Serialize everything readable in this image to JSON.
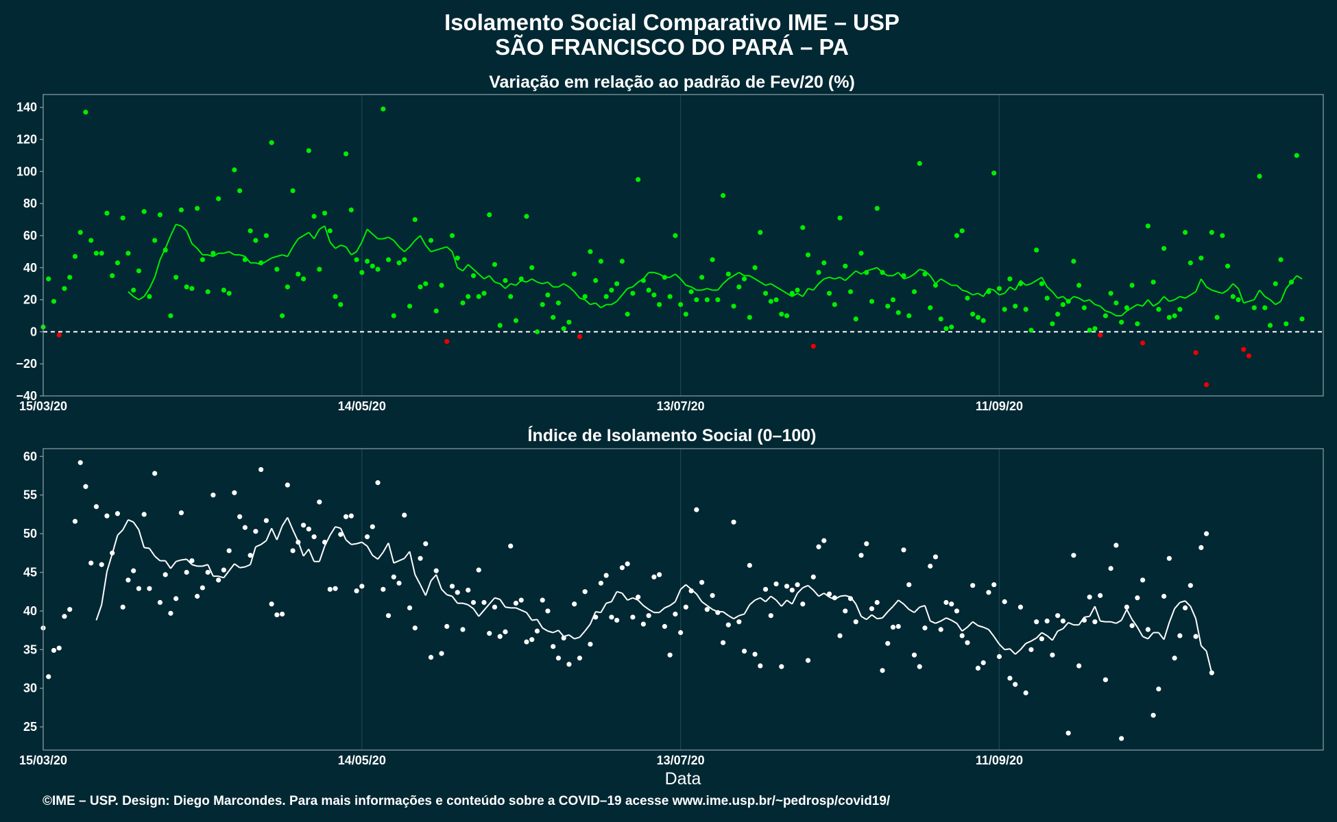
{
  "chart_data": {
    "title": "Isolamento Social Comparativo IME – USP",
    "subtitle": "SÃO FRANCISCO DO PARÁ – PA",
    "xlabel": "Data",
    "footer": "©IME – USP. Design: Diego Marcondes. Para mais informações e conteúdo sobre a COVID–19 acesse www.ime.usp.br/~pedrosp/covid19/",
    "start_date": "2020-03-15",
    "end_date": "2020-11-11",
    "x_ticks": [
      {
        "label": "15/03/20",
        "day": 0
      },
      {
        "label": "14/05/20",
        "day": 60
      },
      {
        "label": "13/07/20",
        "day": 120
      },
      {
        "label": "11/09/20",
        "day": 180
      }
    ],
    "colors": {
      "background": "#022833",
      "positive": "#00ee00",
      "negative": "#ee0000",
      "index": "#ffffff",
      "grid": "#1e4652",
      "frame": "#8da2a8"
    },
    "panels": [
      {
        "type": "scatter",
        "title": "Variação em relação ao padrão de Fev/20 (%)",
        "ylim": [
          -40,
          148
        ],
        "y_ticks": [
          -40,
          -20,
          0,
          20,
          40,
          60,
          80,
          100,
          120,
          140
        ],
        "reference_line": 0,
        "points": [
          3,
          33,
          19,
          -2,
          27,
          34,
          47,
          62,
          137,
          57,
          49,
          49,
          74,
          35,
          43,
          71,
          49,
          26,
          38,
          75,
          22,
          57,
          73,
          51,
          10,
          34,
          76,
          28,
          27,
          77,
          45,
          25,
          49,
          83,
          26,
          24,
          101,
          88,
          45,
          63,
          57,
          43,
          60,
          118,
          39,
          10,
          28,
          88,
          36,
          33,
          113,
          72,
          39,
          74,
          63,
          22,
          17,
          111,
          76,
          45,
          37,
          44,
          41,
          39,
          139,
          45,
          10,
          43,
          45,
          16,
          70,
          28,
          30,
          57,
          13,
          29,
          -6,
          60,
          46,
          18,
          22,
          35,
          22,
          24,
          73,
          42,
          4,
          32,
          22,
          7,
          33,
          72,
          40,
          0,
          17,
          23,
          9,
          18,
          2,
          6,
          36,
          -3,
          22,
          50,
          32,
          44,
          22,
          26,
          30,
          44,
          11,
          24,
          95,
          32,
          26,
          23,
          17,
          34,
          22,
          60,
          17,
          11,
          25,
          20,
          34,
          20,
          45,
          20,
          85,
          36,
          16,
          28,
          33,
          9,
          40,
          62,
          24,
          19,
          20,
          11,
          10,
          24,
          26,
          65,
          48,
          -9,
          37,
          43,
          24,
          17,
          71,
          41,
          25,
          8,
          49,
          37,
          19,
          77,
          37,
          16,
          20,
          12,
          35,
          10,
          25,
          105,
          36,
          15,
          29,
          8,
          2,
          3,
          60,
          63,
          21,
          11,
          9,
          7,
          25,
          99,
          27,
          14,
          33,
          16,
          30,
          14,
          1,
          51,
          30,
          21,
          5,
          11,
          17,
          19,
          44,
          29,
          15,
          1,
          2,
          -2,
          10,
          24,
          18,
          6,
          15,
          29,
          5,
          -7,
          66,
          31,
          14,
          52,
          9,
          10,
          14,
          62,
          43,
          -13,
          46,
          -33,
          62,
          9,
          60,
          41,
          22,
          20,
          -11,
          -15,
          15,
          97,
          15,
          4,
          30,
          45,
          5,
          31,
          110,
          8
        ],
        "smooth": [
          25,
          22,
          20,
          22,
          27,
          34,
          45,
          52,
          60,
          67,
          66,
          63,
          55,
          52,
          48,
          48,
          47,
          49,
          49,
          50,
          48,
          48,
          47,
          43,
          43,
          42,
          44,
          46,
          47,
          48,
          47,
          53,
          58,
          60,
          62,
          58,
          64,
          66,
          56,
          52,
          54,
          53,
          48,
          50,
          56,
          64,
          61,
          58,
          58,
          59,
          57,
          53,
          50,
          53,
          57,
          60,
          54,
          50,
          51,
          52,
          53,
          50,
          40,
          38,
          42,
          39,
          36,
          33,
          35,
          31,
          30,
          27,
          30,
          29,
          32,
          31,
          33,
          31,
          30,
          31,
          28,
          28,
          30,
          28,
          25,
          21,
          20,
          17,
          18,
          15,
          17,
          17,
          19,
          23,
          27,
          28,
          31,
          33,
          37,
          37,
          36,
          34,
          34,
          36,
          33,
          29,
          28,
          26,
          26,
          27,
          26,
          26,
          30,
          33,
          35,
          37,
          35,
          35,
          33,
          31,
          29,
          30,
          28,
          26,
          24,
          22,
          24,
          22,
          27,
          26,
          30,
          33,
          34,
          33,
          34,
          32,
          35,
          38,
          36,
          38,
          39,
          40,
          37,
          35,
          35,
          37,
          33,
          34,
          36,
          39,
          38,
          35,
          30,
          33,
          31,
          29,
          29,
          26,
          25,
          23,
          24,
          22,
          27,
          26,
          23,
          24,
          28,
          26,
          32,
          29,
          30,
          32,
          34,
          28,
          25,
          21,
          22,
          19,
          22,
          21,
          19,
          20,
          17,
          16,
          13,
          12,
          10,
          10,
          13,
          15,
          17,
          16,
          20,
          16,
          18,
          22,
          19,
          20,
          22,
          21,
          23,
          25,
          33,
          28,
          26,
          25,
          24,
          26,
          30,
          27,
          18,
          19,
          20,
          26,
          22,
          20,
          17,
          19,
          27,
          31,
          35,
          33
        ]
      },
      {
        "type": "scatter",
        "title": "Índice de Isolamento Social (0–100)",
        "ylim": [
          22,
          61
        ],
        "y_ticks": [
          25,
          30,
          35,
          40,
          45,
          50,
          55,
          60
        ],
        "points": [
          37.8,
          31.5,
          34.9,
          35.2,
          39.3,
          40.2,
          51.6,
          59.2,
          56.1,
          46.2,
          53.5,
          46.0,
          52.3,
          47.5,
          52.6,
          40.5,
          44.0,
          45.2,
          42.9,
          52.5,
          42.9,
          57.8,
          41.1,
          44.7,
          39.7,
          41.6,
          52.7,
          45.0,
          46.5,
          41.9,
          43.0,
          45.0,
          55.0,
          44.0,
          45.3,
          47.8,
          55.3,
          52.2,
          50.8,
          47.2,
          50.3,
          58.3,
          51.7,
          40.9,
          39.5,
          39.6,
          56.3,
          47.8,
          48.9,
          51.1,
          50.6,
          49.6,
          54.1,
          48.9,
          42.8,
          42.9,
          49.9,
          52.2,
          52.3,
          42.6,
          43.2,
          49.6,
          50.9,
          56.6,
          42.8,
          39.4,
          44.4,
          43.6,
          52.4,
          40.4,
          37.8,
          46.8,
          48.7,
          34.0,
          45.2,
          34.5,
          38.0,
          43.2,
          42.4,
          37.6,
          42.7,
          41.1,
          45.3,
          41.1,
          37.1,
          40.5,
          36.7,
          37.3,
          48.4,
          41.0,
          41.4,
          36.0,
          36.3,
          37.4,
          41.4,
          40.0,
          35.4,
          33.9,
          36.5,
          33.1,
          40.9,
          33.9,
          42.5,
          35.7,
          39.2,
          43.6,
          44.6,
          39.2,
          38.8,
          45.6,
          46.1,
          39.2,
          41.8,
          38.3,
          39.4,
          44.4,
          44.7,
          38.0,
          34.3,
          39.6,
          37.2,
          40.5,
          42.6,
          53.1,
          43.7,
          40.2,
          42.0,
          39.8,
          35.9,
          38.2,
          51.5,
          38.6,
          34.8,
          45.9,
          34.4,
          32.9,
          42.8,
          39.4,
          43.5,
          32.8,
          43.2,
          42.7,
          43.4,
          40.9,
          33.6,
          44.4,
          48.3,
          49.1,
          42.2,
          41.7,
          36.8,
          40.0,
          41.6,
          38.6,
          47.2,
          48.7,
          40.3,
          41.1,
          32.3,
          35.8,
          37.9,
          38.0,
          47.9,
          43.4,
          34.3,
          32.8,
          37.8,
          45.8,
          47.0,
          37.6,
          41.1,
          40.9,
          40.0,
          36.8,
          35.9,
          43.3,
          32.6,
          33.3,
          42.4,
          43.4,
          34.1,
          41.2,
          31.3,
          30.5,
          40.5,
          29.4,
          35.0,
          38.6,
          36.4,
          38.7,
          34.3,
          39.4,
          38.7,
          24.2,
          47.2,
          32.9,
          38.8,
          41.8,
          38.6,
          42.0,
          31.1,
          45.5,
          48.5,
          23.5,
          40.5,
          38.1,
          41.7,
          44.0,
          37.6,
          26.5,
          29.9,
          41.9,
          46.8,
          33.9,
          36.8,
          40.4,
          43.3,
          36.7,
          48.2,
          50.0,
          32.0
        ],
        "smooth": [
          38.8,
          40.8,
          45.1,
          47.4,
          49.8,
          50.5,
          51.8,
          51.5,
          50.5,
          48.2,
          48.1,
          47.1,
          46.5,
          46.5,
          45.5,
          46.4,
          46.6,
          46.7,
          46.0,
          45.8,
          45.8,
          46.0,
          44.5,
          44.5,
          44.3,
          45.2,
          46.1,
          45.6,
          45.7,
          46.0,
          48.3,
          48.6,
          49.1,
          50.7,
          49.2,
          51.0,
          52.1,
          50.5,
          49.0,
          47.1,
          48.0,
          46.4,
          46.4,
          48.4,
          49.8,
          50.9,
          50.7,
          49.2,
          48.6,
          48.7,
          48.9,
          48.4,
          47.2,
          46.7,
          47.6,
          48.8,
          46.2,
          46.5,
          46.8,
          47.7,
          44.7,
          43.4,
          42.0,
          43.9,
          44.7,
          42.8,
          42.1,
          41.9,
          41.0,
          41.0,
          40.8,
          40.3,
          39.3,
          40.1,
          40.9,
          41.7,
          41.5,
          40.5,
          40.4,
          40.4,
          40.1,
          39.8,
          38.8,
          38.9,
          37.8,
          37.4,
          37.2,
          37.5,
          36.7,
          36.9,
          36.4,
          36.6,
          37.4,
          38.3,
          39.9,
          39.8,
          41.0,
          41.2,
          42.5,
          42.3,
          41.4,
          41.7,
          41.4,
          40.7,
          40.2,
          39.8,
          39.8,
          40.4,
          40.7,
          41.2,
          42.8,
          43.4,
          42.8,
          42.2,
          41.2,
          40.7,
          40.2,
          39.9,
          39.9,
          39.4,
          39.0,
          39.4,
          39.6,
          40.8,
          41.4,
          41.7,
          41.2,
          41.9,
          41.4,
          40.6,
          41.4,
          40.9,
          42.3,
          43.0,
          43.3,
          42.7,
          41.9,
          42.3,
          41.8,
          41.5,
          41.9,
          42.0,
          41.8,
          40.9,
          39.3,
          38.9,
          39.5,
          39.0,
          39.1,
          39.9,
          40.6,
          41.4,
          40.9,
          40.2,
          39.8,
          40.5,
          40.7,
          38.7,
          38.4,
          38.7,
          39.1,
          38.8,
          38.4,
          37.4,
          37.9,
          38.6,
          38.1,
          37.9,
          37.6,
          36.7,
          35.7,
          35.0,
          35.1,
          34.4,
          35.0,
          35.8,
          36.1,
          36.5,
          37.2,
          36.8,
          36.2,
          37.4,
          37.7,
          38.5,
          38.2,
          38.2,
          39.2,
          39.3,
          40.6,
          38.7,
          38.6,
          38.6,
          38.4,
          38.8,
          40.2,
          38.9,
          37.9,
          36.7,
          36.4,
          37.2,
          37.2,
          36.3,
          38.5,
          40.3,
          41.1,
          41.3,
          40.6,
          39.0,
          35.5,
          34.8,
          32.0
        ]
      }
    ]
  }
}
